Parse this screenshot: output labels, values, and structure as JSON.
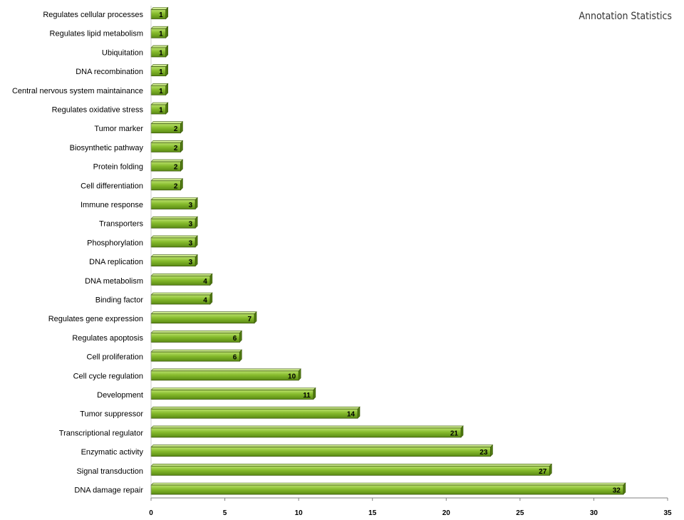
{
  "chart_data": {
    "type": "bar",
    "orientation": "horizontal",
    "title": "Annotation Statistics",
    "xlabel": "",
    "ylabel": "",
    "xlim": [
      0,
      35
    ],
    "xticks": [
      0,
      5,
      10,
      15,
      20,
      25,
      30,
      35
    ],
    "grid": false,
    "bar_color": "#7db324",
    "bar_edge_color": "#3d5a0c",
    "data_labels": true,
    "categories": [
      "Regulates cellular processes",
      "Regulates lipid metabolism",
      "Ubiquitation",
      "DNA recombination",
      "Central nervous system maintainance",
      "Regulates oxidative stress",
      "Tumor marker",
      "Biosynthetic pathway",
      "Protein folding",
      "Cell differentiation",
      "Immune response",
      "Transporters",
      "Phosphorylation",
      "DNA replication",
      "DNA metabolism",
      "Binding factor",
      "Regulates gene expression",
      "Regulates apoptosis",
      "Cell proliferation",
      "Cell cycle regulation",
      "Development",
      "Tumor suppressor",
      "Transcriptional regulator",
      "Enzymatic activity",
      "Signal transduction",
      "DNA damage repair"
    ],
    "values": [
      1,
      1,
      1,
      1,
      1,
      1,
      2,
      2,
      2,
      2,
      3,
      3,
      3,
      3,
      4,
      4,
      7,
      6,
      6,
      10,
      11,
      14,
      21,
      23,
      27,
      32
    ]
  }
}
